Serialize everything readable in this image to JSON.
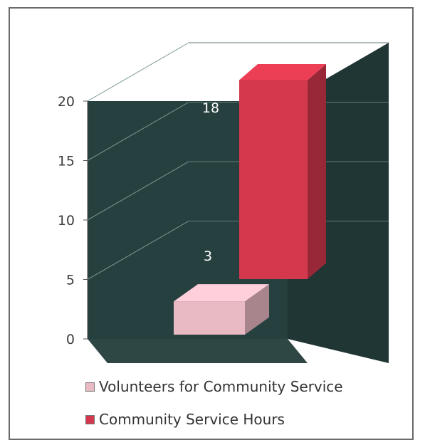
{
  "chart_data": {
    "type": "bar",
    "style": "3d-column",
    "title": "",
    "xlabel": "",
    "ylabel": "",
    "ylim": [
      0,
      20
    ],
    "yticks": [
      0,
      5,
      10,
      15,
      20
    ],
    "grid": true,
    "legend_position": "bottom",
    "background_color": "#25403e",
    "series": [
      {
        "name": "Volunteers for Community Service",
        "value": 3,
        "label": "3",
        "color": "#e9b9c4"
      },
      {
        "name": "Community Service Hours",
        "value": 18,
        "label": "18",
        "color": "#d3384d"
      }
    ]
  }
}
